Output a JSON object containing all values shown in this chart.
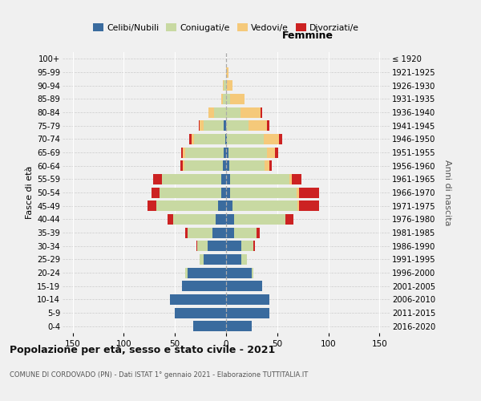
{
  "age_groups": [
    "0-4",
    "5-9",
    "10-14",
    "15-19",
    "20-24",
    "25-29",
    "30-34",
    "35-39",
    "40-44",
    "45-49",
    "50-54",
    "55-59",
    "60-64",
    "65-69",
    "70-74",
    "75-79",
    "80-84",
    "85-89",
    "90-94",
    "95-99",
    "100+"
  ],
  "birth_years": [
    "2016-2020",
    "2011-2015",
    "2006-2010",
    "2001-2005",
    "1996-2000",
    "1991-1995",
    "1986-1990",
    "1981-1985",
    "1976-1980",
    "1971-1975",
    "1966-1970",
    "1961-1965",
    "1956-1960",
    "1951-1955",
    "1946-1950",
    "1941-1945",
    "1936-1940",
    "1931-1935",
    "1926-1930",
    "1921-1925",
    "≤ 1920"
  ],
  "male_celibi": [
    32,
    50,
    55,
    43,
    38,
    22,
    18,
    13,
    10,
    8,
    5,
    5,
    3,
    2,
    1,
    2,
    0,
    0,
    0,
    0,
    0
  ],
  "male_coniugati": [
    0,
    0,
    0,
    0,
    2,
    4,
    10,
    25,
    42,
    60,
    60,
    58,
    38,
    38,
    30,
    20,
    12,
    3,
    2,
    0,
    0
  ],
  "male_vedovi": [
    0,
    0,
    0,
    0,
    0,
    0,
    0,
    0,
    0,
    0,
    0,
    0,
    1,
    2,
    3,
    4,
    5,
    2,
    1,
    0,
    0
  ],
  "male_divorziati": [
    0,
    0,
    0,
    0,
    0,
    0,
    1,
    2,
    5,
    9,
    8,
    8,
    3,
    2,
    2,
    1,
    0,
    0,
    0,
    0,
    0
  ],
  "female_nubili": [
    25,
    42,
    42,
    35,
    25,
    15,
    15,
    8,
    8,
    6,
    4,
    4,
    3,
    2,
    1,
    0,
    0,
    0,
    0,
    0,
    0
  ],
  "female_coniugate": [
    0,
    0,
    0,
    0,
    2,
    5,
    12,
    22,
    50,
    64,
    65,
    58,
    35,
    38,
    36,
    22,
    14,
    4,
    1,
    0,
    0
  ],
  "female_vedove": [
    0,
    0,
    0,
    0,
    0,
    0,
    0,
    0,
    0,
    1,
    2,
    2,
    4,
    8,
    15,
    18,
    20,
    14,
    5,
    2,
    0
  ],
  "female_divorziate": [
    0,
    0,
    0,
    0,
    0,
    0,
    1,
    3,
    8,
    20,
    20,
    10,
    3,
    3,
    3,
    2,
    1,
    0,
    0,
    0,
    0
  ],
  "color_cel": "#3a6b9e",
  "color_con": "#c8d9a2",
  "color_ved": "#f5c97a",
  "color_div": "#cc2222",
  "xlim": 160,
  "title": "Popolazione per età, sesso e stato civile - 2021",
  "subtitle": "COMUNE DI CORDOVADO (PN) - Dati ISTAT 1° gennaio 2021 - Elaborazione TUTTITALIA.IT",
  "legend_labels": [
    "Celibi/Nubili",
    "Coniugati/e",
    "Vedovi/e",
    "Divorziati/e"
  ],
  "right_header": "Femmine",
  "ylabel": "Fasce di età",
  "right_ylabel": "Anni di nascita",
  "bg_color": "#f0f0f0"
}
